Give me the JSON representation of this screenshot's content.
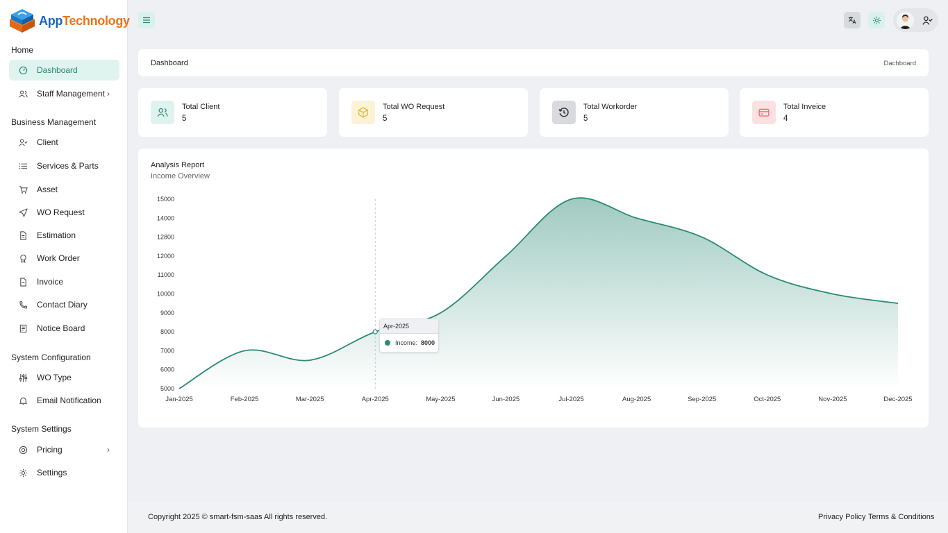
{
  "brand": {
    "name_part1": "App",
    "name_part2": "Technology"
  },
  "sidebar": {
    "sections": [
      "Home",
      "Business Management",
      "System Configuration",
      "System Settings"
    ],
    "items": [
      {
        "label": "Dashboard",
        "icon": "dashboard-icon",
        "active": true
      },
      {
        "label": "Staff Management",
        "icon": "users-icon",
        "chevron": true
      },
      {
        "label": "Client",
        "icon": "user-check-icon"
      },
      {
        "label": "Services & Parts",
        "icon": "list-icon"
      },
      {
        "label": "Asset",
        "icon": "cart-icon"
      },
      {
        "label": "WO Request",
        "icon": "send-icon"
      },
      {
        "label": "Estimation",
        "icon": "file-icon"
      },
      {
        "label": "Work Order",
        "icon": "award-icon"
      },
      {
        "label": "Invoice",
        "icon": "document-icon"
      },
      {
        "label": "Contact Diary",
        "icon": "phone-icon"
      },
      {
        "label": "Notice Board",
        "icon": "board-icon"
      },
      {
        "label": "WO Type",
        "icon": "sliders-icon"
      },
      {
        "label": "Email Notification",
        "icon": "bell-icon"
      },
      {
        "label": "Pricing",
        "icon": "pricing-icon",
        "chevron": true
      },
      {
        "label": "Settings",
        "icon": "gear-icon"
      }
    ]
  },
  "header": {
    "breadcrumb_title": "Dashboard",
    "breadcrumb_right": "Dachboard"
  },
  "stats": [
    {
      "label": "Total Client",
      "value": "5",
      "color": "#dff3ee",
      "icon_color": "#2a8a75",
      "icon": "users-icon"
    },
    {
      "label": "Total WO Request",
      "value": "5",
      "color": "#fdf2d6",
      "icon_color": "#e0b73c",
      "icon": "box-icon"
    },
    {
      "label": "Total Workorder",
      "value": "5",
      "color": "#d8dadf",
      "icon_color": "#333333",
      "icon": "history-icon"
    },
    {
      "label": "Total Inveice",
      "value": "4",
      "color": "#fde0e2",
      "icon_color": "#e5646d",
      "icon": "credit-card-icon"
    }
  ],
  "chart": {
    "title": "Analysis Report",
    "subtitle": "Income Overview",
    "tooltip": {
      "month": "Apr-2025",
      "label": "Income:",
      "value": "8000"
    }
  },
  "chart_data": {
    "type": "area",
    "title": "Analysis Report",
    "subtitle": "Income Overview",
    "categories": [
      "Jan-2025",
      "Feb-2025",
      "Mar-2025",
      "Apr-2025",
      "May-2025",
      "Jun-2025",
      "Jul-2025",
      "Aug-2025",
      "Sep-2025",
      "Oct-2025",
      "Nov-2025",
      "Dec-2025"
    ],
    "series": [
      {
        "name": "Income",
        "values": [
          5000,
          7000,
          6500,
          8000,
          9000,
          12000,
          15000,
          14000,
          12800,
          11000,
          10000,
          9500
        ]
      }
    ],
    "y_ticks": [
      "5000",
      "6000",
      "7000",
      "8000",
      "9000",
      "10000",
      "11000",
      "12000",
      "12800",
      "14000",
      "15000"
    ],
    "color": "#2a8a75",
    "grid": false
  },
  "footer": {
    "copyright": "Copyright 2025 © smart-fsm-saas All rights reserved.",
    "privacy": "Privacy Policy",
    "terms": "Terms & Conditions"
  }
}
